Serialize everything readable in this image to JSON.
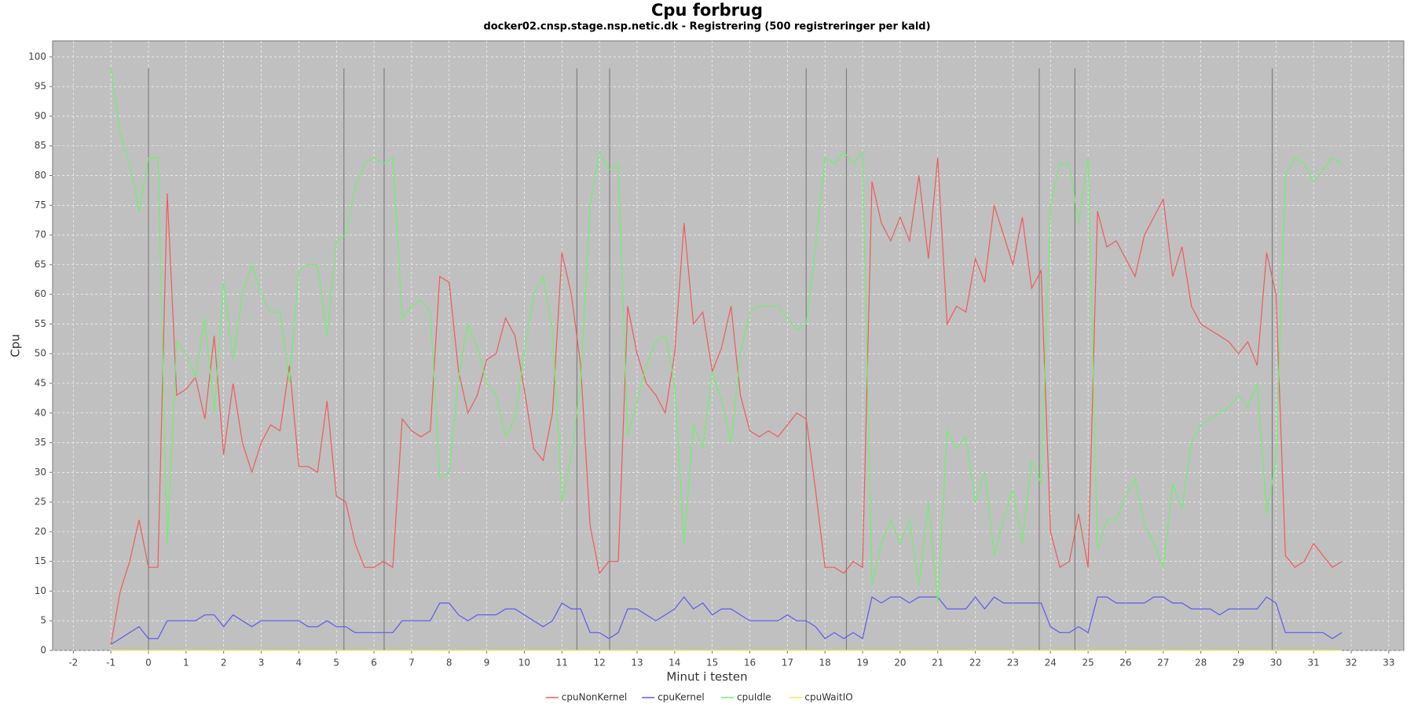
{
  "chart_data": {
    "type": "line",
    "title": "Cpu forbrug",
    "subtitle": "docker02.cnsp.stage.nsp.netic.dk - Registrering (500 registreringer per kald)",
    "x_label": "Minut i testen",
    "y_label": "Cpu",
    "x": [
      -1,
      -0.75,
      -0.5,
      -0.25,
      0,
      0.25,
      0.5,
      0.75,
      1,
      1.25,
      1.5,
      1.75,
      2,
      2.25,
      2.5,
      2.75,
      3,
      3.25,
      3.5,
      3.75,
      4,
      4.25,
      4.5,
      4.75,
      5,
      5.25,
      5.5,
      5.75,
      6,
      6.25,
      6.5,
      6.75,
      7,
      7.25,
      7.5,
      7.75,
      8,
      8.25,
      8.5,
      8.75,
      9,
      9.25,
      9.5,
      9.75,
      10,
      10.25,
      10.5,
      10.75,
      11,
      11.25,
      11.5,
      11.75,
      12,
      12.25,
      12.5,
      12.75,
      13,
      13.25,
      13.5,
      13.75,
      14,
      14.25,
      14.5,
      14.75,
      15,
      15.25,
      15.5,
      15.75,
      16,
      16.25,
      16.5,
      16.75,
      17,
      17.25,
      17.5,
      17.75,
      18,
      18.25,
      18.5,
      18.75,
      19,
      19.25,
      19.5,
      19.75,
      20,
      20.25,
      20.5,
      20.75,
      21,
      21.25,
      21.5,
      21.75,
      22,
      22.25,
      22.5,
      22.75,
      23,
      23.25,
      23.5,
      23.75,
      24,
      24.25,
      24.5,
      24.75,
      25,
      25.25,
      25.5,
      25.75,
      26,
      26.25,
      26.5,
      26.75,
      27,
      27.25,
      27.5,
      27.75,
      28,
      28.25,
      28.5,
      28.75,
      29,
      29.25,
      29.5,
      29.75,
      30,
      30.25,
      30.5,
      30.75,
      31,
      31.25,
      31.5,
      31.75
    ],
    "series": [
      {
        "name": "cpuNonKernel",
        "color": "#f05a5a",
        "values": [
          1,
          10,
          15,
          22,
          14,
          14,
          77,
          43,
          44,
          46,
          39,
          53,
          33,
          45,
          35,
          30,
          35,
          38,
          37,
          48,
          31,
          31,
          30,
          42,
          26,
          25,
          18,
          14,
          14,
          15,
          14,
          39,
          37,
          36,
          37,
          63,
          62,
          47,
          40,
          43,
          49,
          50,
          56,
          53,
          44,
          34,
          32,
          40,
          67,
          60,
          48,
          21,
          13,
          15,
          15,
          58,
          50,
          45,
          43,
          40,
          50,
          72,
          55,
          57,
          47,
          51,
          58,
          43,
          37,
          36,
          37,
          36,
          38,
          40,
          39,
          27,
          14,
          14,
          13,
          15,
          14,
          79,
          72,
          69,
          73,
          69,
          80,
          66,
          83,
          55,
          58,
          57,
          66,
          62,
          75,
          70,
          65,
          73,
          61,
          64,
          20,
          14,
          15,
          23,
          14,
          74,
          68,
          69,
          66,
          63,
          70,
          73,
          76,
          63,
          68,
          58,
          55,
          54,
          53,
          52,
          50,
          52,
          48,
          67,
          60,
          16,
          14,
          15,
          18,
          16,
          14,
          15
        ]
      },
      {
        "name": "cpuKernel",
        "color": "#5a5af0",
        "values": [
          1,
          2,
          3,
          4,
          2,
          2,
          5,
          5,
          5,
          5,
          6,
          6,
          4,
          6,
          5,
          4,
          5,
          5,
          5,
          5,
          5,
          4,
          4,
          5,
          4,
          4,
          3,
          3,
          3,
          3,
          3,
          5,
          5,
          5,
          5,
          8,
          8,
          6,
          5,
          6,
          6,
          6,
          7,
          7,
          6,
          5,
          4,
          5,
          8,
          7,
          7,
          3,
          3,
          2,
          3,
          7,
          7,
          6,
          5,
          6,
          7,
          9,
          7,
          8,
          6,
          7,
          7,
          6,
          5,
          5,
          5,
          5,
          6,
          5,
          5,
          4,
          2,
          3,
          2,
          3,
          2,
          9,
          8,
          9,
          9,
          8,
          9,
          9,
          9,
          7,
          7,
          7,
          9,
          7,
          9,
          8,
          8,
          8,
          8,
          8,
          4,
          3,
          3,
          4,
          3,
          9,
          9,
          8,
          8,
          8,
          8,
          9,
          9,
          8,
          8,
          7,
          7,
          7,
          6,
          7,
          7,
          7,
          7,
          9,
          8,
          3,
          3,
          3,
          3,
          3,
          2,
          3
        ]
      },
      {
        "name": "cpuIdle",
        "color": "#6ef06e",
        "values": [
          98,
          87,
          82,
          74,
          83,
          83,
          18,
          52,
          50,
          46,
          56,
          40,
          62,
          49,
          60,
          65,
          60,
          57,
          57,
          45,
          64,
          65,
          65,
          53,
          69,
          70,
          78,
          82,
          83,
          82,
          83,
          56,
          58,
          59,
          57,
          29,
          30,
          46,
          55,
          51,
          45,
          43,
          36,
          39,
          50,
          60,
          63,
          54,
          25,
          33,
          45,
          75,
          84,
          81,
          82,
          36,
          42,
          48,
          52,
          53,
          45,
          18,
          38,
          34,
          47,
          42,
          35,
          50,
          57,
          58,
          58,
          58,
          56,
          54,
          55,
          68,
          83,
          82,
          84,
          82,
          84,
          11,
          18,
          22,
          18,
          22,
          11,
          25,
          8,
          37,
          34,
          36,
          25,
          30,
          16,
          22,
          27,
          18,
          32,
          28,
          75,
          82,
          82,
          72,
          83,
          17,
          22,
          22,
          26,
          29,
          21,
          18,
          14,
          28,
          24,
          35,
          38,
          39,
          40,
          41,
          43,
          41,
          45,
          23,
          32,
          80,
          83,
          82,
          79,
          81,
          83,
          82
        ]
      },
      {
        "name": "cpuWaitIO",
        "color": "#f0f050",
        "values": [
          0,
          0,
          0,
          0,
          0,
          0,
          0,
          0,
          0,
          0,
          0,
          0,
          0,
          0,
          0,
          0,
          0,
          0,
          0,
          0,
          0,
          0,
          0,
          0,
          0,
          0,
          0,
          0,
          0,
          0,
          0,
          0,
          0,
          0,
          0,
          0,
          0,
          0,
          0,
          0,
          0,
          0,
          0,
          0,
          0,
          0,
          0,
          0,
          0,
          0,
          0,
          0,
          0,
          0,
          0,
          0,
          0,
          0,
          0,
          0,
          0,
          0,
          0,
          0,
          0,
          0,
          0,
          0,
          0,
          0,
          0,
          0,
          0,
          0,
          0,
          0,
          0,
          0,
          0,
          0,
          0,
          0,
          0,
          0,
          0,
          0,
          0,
          0,
          0,
          0,
          0,
          0,
          0,
          0,
          0,
          0,
          0,
          0,
          0,
          0,
          0,
          0,
          0,
          0,
          0,
          0,
          0,
          0,
          0,
          0,
          0,
          0,
          0,
          0,
          0,
          0,
          0,
          0,
          0,
          0,
          0,
          0,
          0,
          0,
          0,
          0,
          0,
          0,
          0,
          0,
          0,
          0
        ]
      }
    ],
    "markers": [
      0,
      5.2,
      6.27,
      11.4,
      12.27,
      17.5,
      18.57,
      23.7,
      24.65,
      29.9
    ],
    "xlim": [
      -2.55,
      33.4
    ],
    "ylim": [
      0,
      102.7
    ],
    "xticks": [
      -2,
      -1,
      0,
      1,
      2,
      3,
      4,
      5,
      6,
      7,
      8,
      9,
      10,
      11,
      12,
      13,
      14,
      15,
      16,
      17,
      18,
      19,
      20,
      21,
      22,
      23,
      24,
      25,
      26,
      27,
      28,
      29,
      30,
      31,
      32,
      33
    ],
    "yticks": [
      0,
      5,
      10,
      15,
      20,
      25,
      30,
      35,
      40,
      45,
      50,
      55,
      60,
      65,
      70,
      75,
      80,
      85,
      90,
      95,
      100
    ],
    "grid": true,
    "legend": "bottom"
  }
}
